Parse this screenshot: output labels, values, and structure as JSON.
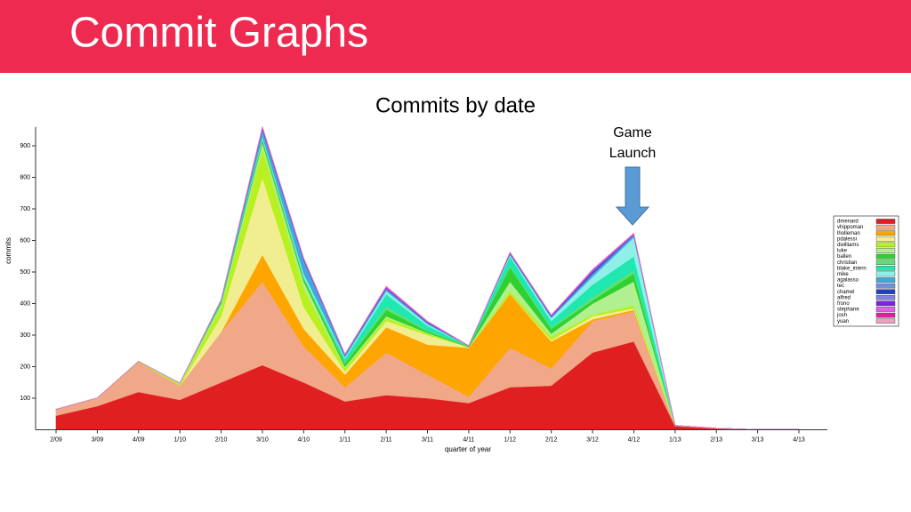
{
  "slide_title": "Commit Graphs",
  "chart_data": {
    "type": "stacked_area",
    "title": "Commits by date",
    "xlabel": "quarter of year",
    "ylabel": "commits",
    "annotation": [
      "Game",
      "Launch"
    ],
    "categories": [
      "2/09",
      "3/09",
      "4/09",
      "1/10",
      "2/10",
      "3/10",
      "4/10",
      "1/11",
      "2/11",
      "3/11",
      "4/11",
      "1/12",
      "2/12",
      "3/12",
      "4/12",
      "1/13",
      "2/13",
      "3/13",
      "4/13"
    ],
    "ylim": [
      0,
      960
    ],
    "yticks": [
      100,
      200,
      300,
      400,
      500,
      600,
      700,
      800,
      900
    ],
    "legend": "right",
    "series": [
      {
        "name": "dmenard",
        "color": "#e02020",
        "values": [
          45,
          75,
          120,
          95,
          150,
          205,
          150,
          90,
          110,
          100,
          85,
          135,
          140,
          245,
          280,
          12,
          4,
          1,
          1
        ]
      },
      {
        "name": "vhippoman",
        "color": "#f0a888",
        "values": [
          20,
          25,
          95,
          45,
          160,
          265,
          115,
          45,
          135,
          75,
          20,
          125,
          55,
          100,
          95,
          1,
          1,
          0,
          0
        ]
      },
      {
        "name": "lholleman",
        "color": "#ffa500",
        "values": [
          0,
          0,
          0,
          0,
          0,
          85,
          55,
          40,
          80,
          95,
          155,
          170,
          85,
          5,
          5,
          0,
          0,
          0,
          0
        ]
      },
      {
        "name": "pdalessi",
        "color": "#f0ee90",
        "values": [
          0,
          0,
          0,
          0,
          50,
          245,
          70,
          10,
          20,
          30,
          2,
          0,
          5,
          10,
          5,
          0,
          0,
          0,
          0
        ]
      },
      {
        "name": "dwilliams",
        "color": "#b8f020",
        "values": [
          0,
          1,
          2,
          5,
          30,
          90,
          60,
          10,
          10,
          5,
          0,
          10,
          10,
          5,
          10,
          0,
          0,
          0,
          0
        ]
      },
      {
        "name": "luke",
        "color": "#b0f090",
        "values": [
          0,
          0,
          0,
          3,
          10,
          20,
          20,
          5,
          5,
          2,
          0,
          30,
          10,
          35,
          75,
          1,
          0,
          0,
          0
        ]
      },
      {
        "name": "ballen",
        "color": "#30d030",
        "values": [
          0,
          0,
          0,
          0,
          5,
          10,
          10,
          10,
          20,
          5,
          2,
          45,
          15,
          10,
          25,
          0,
          0,
          0,
          0
        ]
      },
      {
        "name": "christian",
        "color": "#60e070",
        "values": [
          0,
          0,
          0,
          0,
          2,
          5,
          5,
          5,
          10,
          3,
          2,
          5,
          5,
          10,
          10,
          0,
          0,
          0,
          0
        ]
      },
      {
        "name": "blake_intern",
        "color": "#20e8b0",
        "values": [
          0,
          0,
          0,
          0,
          0,
          0,
          0,
          10,
          40,
          15,
          0,
          30,
          20,
          40,
          45,
          0,
          0,
          0,
          0
        ]
      },
      {
        "name": "mike",
        "color": "#90f0e8",
        "values": [
          0,
          0,
          0,
          0,
          0,
          5,
          10,
          5,
          10,
          5,
          0,
          5,
          10,
          25,
          60,
          0,
          0,
          0,
          0
        ]
      },
      {
        "name": "agalasso",
        "color": "#40a8e0",
        "values": [
          0,
          0,
          0,
          0,
          5,
          20,
          40,
          5,
          5,
          3,
          0,
          2,
          3,
          5,
          5,
          0,
          0,
          0,
          0
        ]
      },
      {
        "name": "tec",
        "color": "#7090e0",
        "values": [
          0,
          0,
          0,
          0,
          0,
          3,
          3,
          2,
          2,
          1,
          0,
          1,
          1,
          5,
          2,
          0,
          0,
          0,
          0
        ]
      },
      {
        "name": "chamel",
        "color": "#2040c0",
        "values": [
          0,
          0,
          0,
          0,
          0,
          2,
          2,
          1,
          1,
          1,
          0,
          1,
          1,
          5,
          1,
          0,
          0,
          0,
          0
        ]
      },
      {
        "name": "alfred",
        "color": "#8080e0",
        "values": [
          0,
          0,
          0,
          0,
          0,
          1,
          1,
          1,
          1,
          1,
          0,
          1,
          1,
          3,
          1,
          0,
          0,
          0,
          0
        ]
      },
      {
        "name": "frono",
        "color": "#8020e0",
        "values": [
          0,
          0,
          0,
          0,
          0,
          2,
          1,
          0,
          2,
          1,
          0,
          1,
          1,
          2,
          1,
          0,
          0,
          0,
          0
        ]
      },
      {
        "name": "stephane",
        "color": "#e060e0",
        "values": [
          0,
          0,
          0,
          0,
          0,
          2,
          2,
          1,
          3,
          1,
          1,
          1,
          1,
          2,
          2,
          0,
          0,
          0,
          0
        ]
      },
      {
        "name": "josh",
        "color": "#e020a0",
        "values": [
          0,
          0,
          0,
          0,
          0,
          1,
          1,
          0,
          1,
          1,
          0,
          1,
          1,
          1,
          1,
          0,
          0,
          0,
          0
        ]
      },
      {
        "name": "yuan",
        "color": "#f0a0c0",
        "values": [
          0,
          0,
          0,
          0,
          0,
          1,
          1,
          0,
          1,
          1,
          0,
          1,
          1,
          1,
          1,
          0,
          0,
          0,
          0
        ]
      }
    ]
  }
}
